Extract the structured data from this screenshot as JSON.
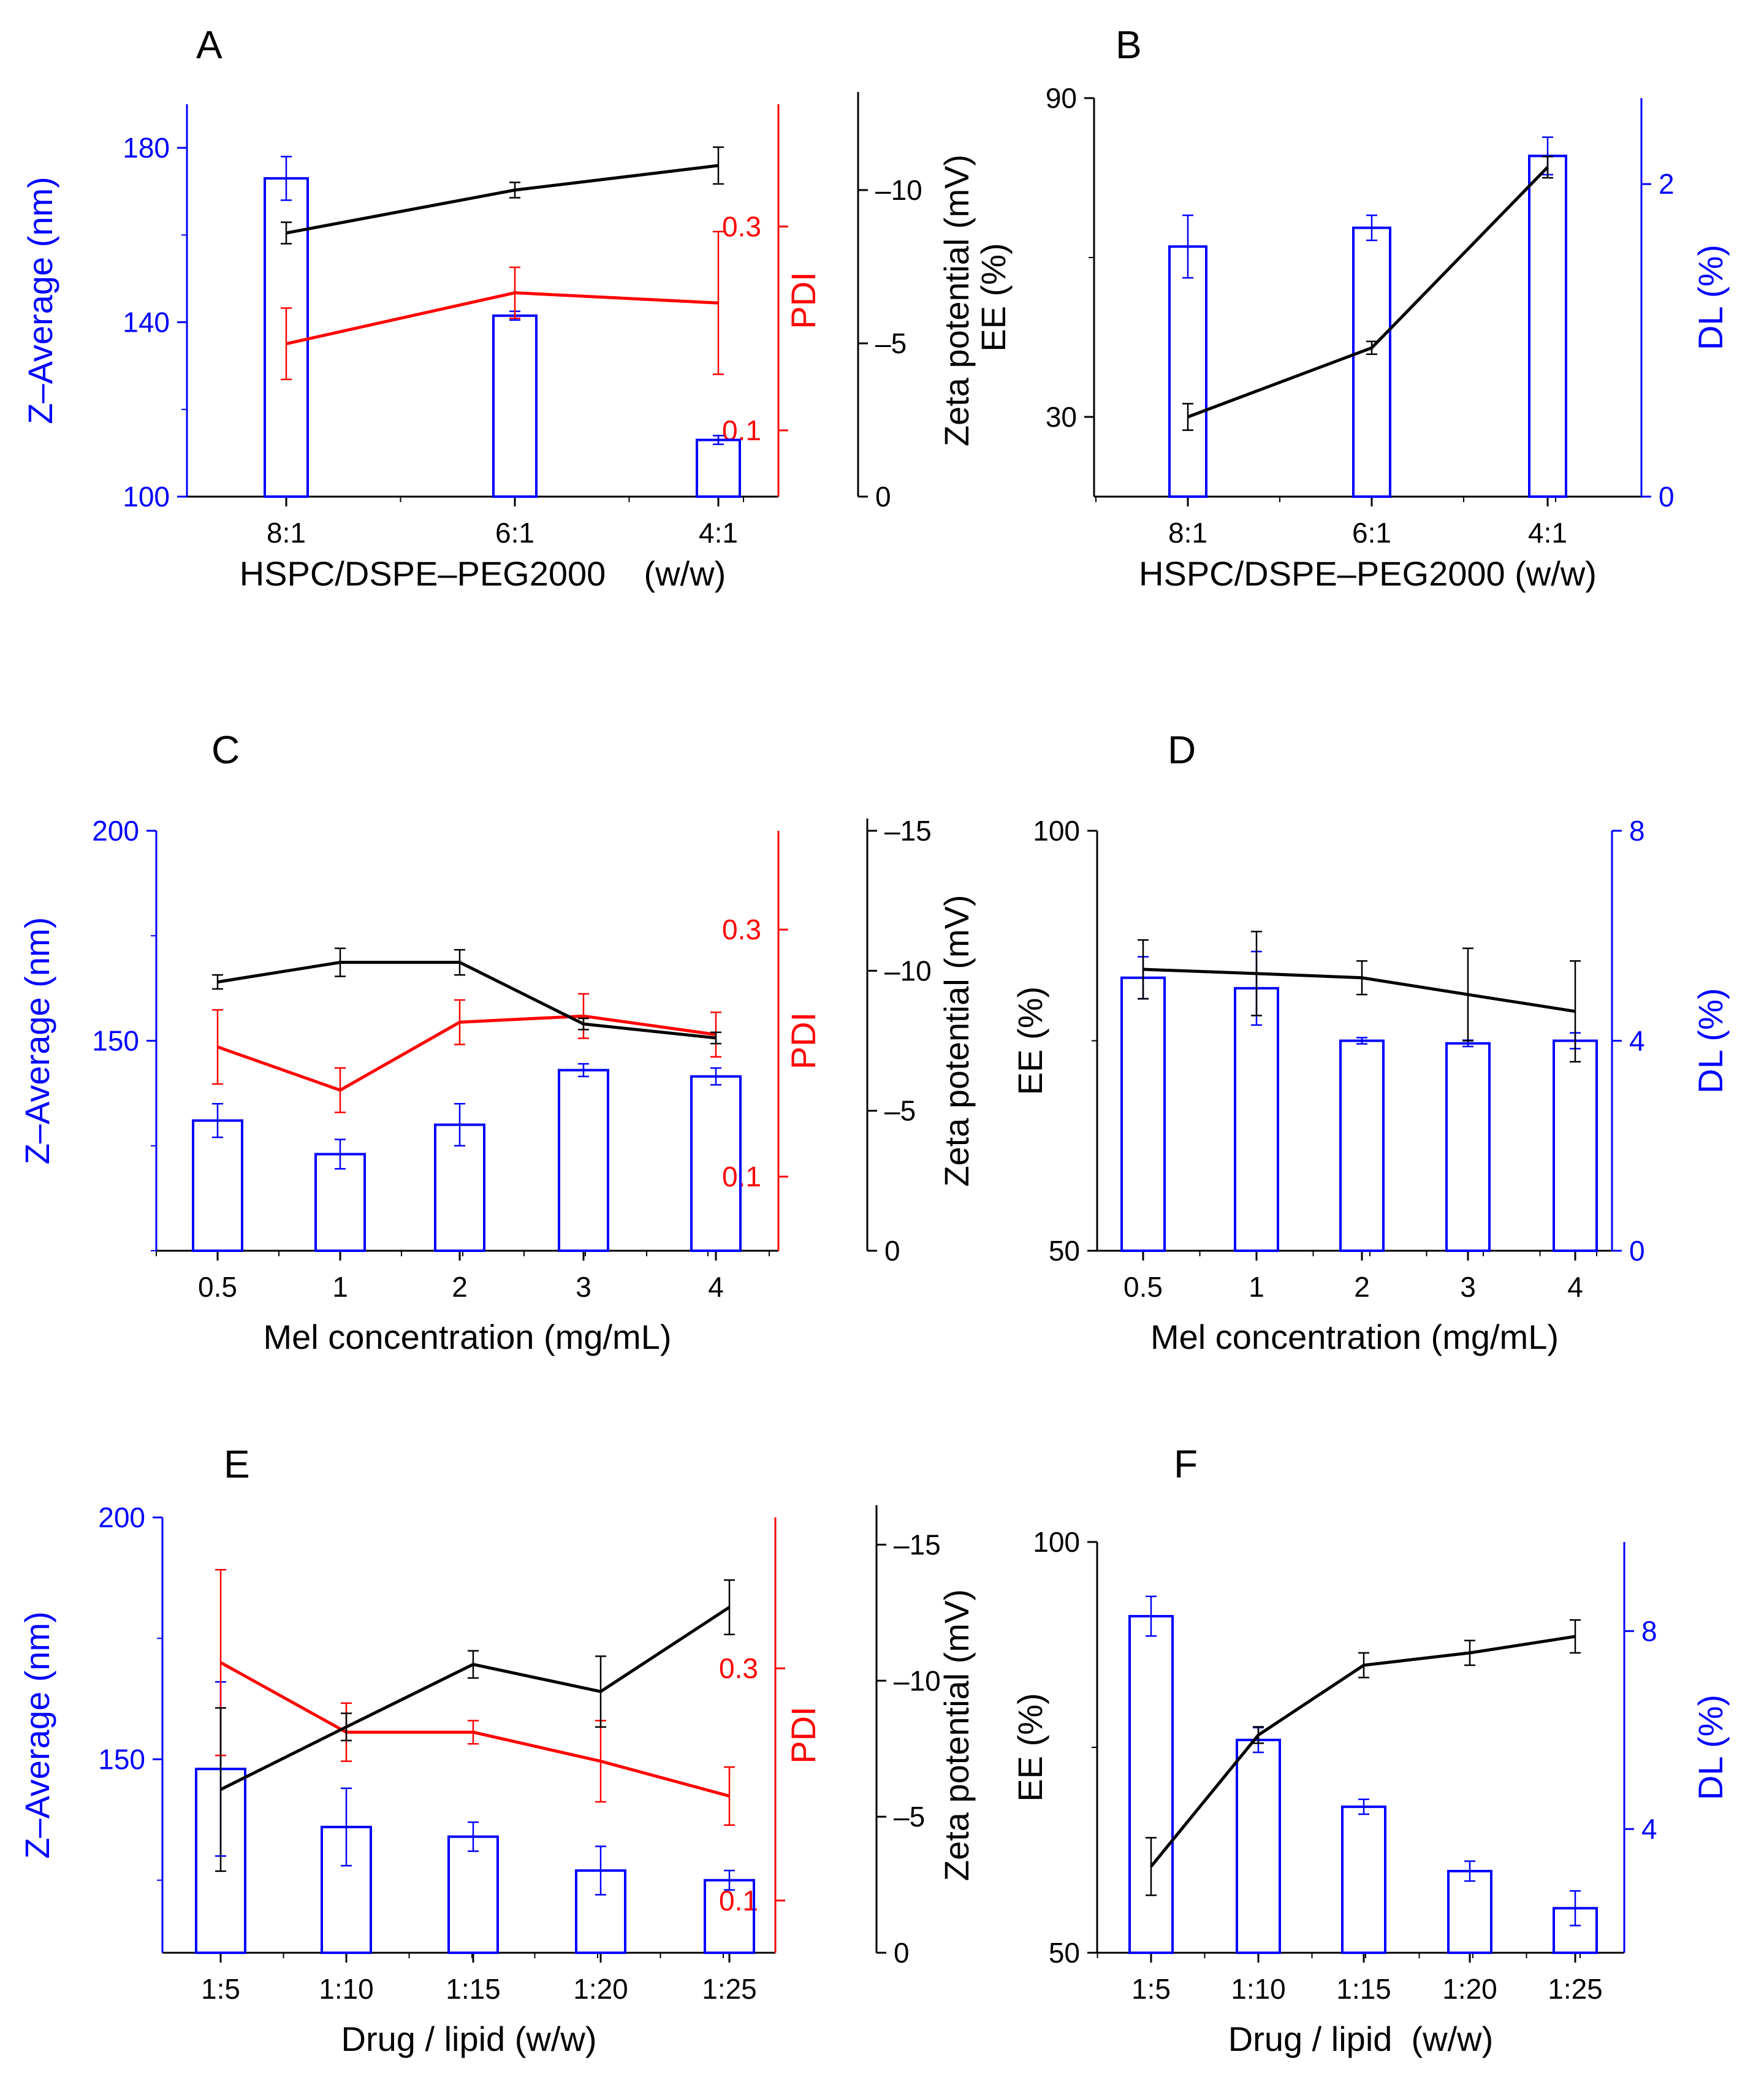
{
  "colors": {
    "bar": "#0000ff",
    "zeta": "#000000",
    "pdi": "#ff0000",
    "axis_black": "#000000"
  },
  "chart_data": [
    {
      "panel": "A",
      "type": "bar",
      "xlabel": "HSPC/DSPE–PEG2000    (w/w)",
      "categories": [
        "8:1",
        "6:1",
        "4:1"
      ],
      "left_axis": {
        "label": "Z–Average (nm)",
        "ticks": [
          "100",
          "140",
          "180"
        ],
        "range": [
          100,
          190
        ]
      },
      "right_axes": [
        {
          "label": "PDI",
          "ticks": [
            "0.1",
            "0.3"
          ],
          "range": [
            0.035,
            0.42
          ]
        },
        {
          "label": "Zeta potential (mV)",
          "ticks": [
            "0",
            "–5",
            "–10"
          ],
          "range": [
            0,
            -12.8
          ]
        }
      ],
      "series": [
        {
          "name": "Z–Average",
          "kind": "bar",
          "axis": 0,
          "values": [
            173,
            141.5,
            113
          ],
          "errors": [
            5,
            1,
            1
          ]
        },
        {
          "name": "PDI",
          "kind": "line",
          "axis": 1,
          "values": [
            0.185,
            0.235,
            0.225
          ],
          "errors": [
            0.035,
            0.025,
            0.07
          ]
        },
        {
          "name": "Zeta potential",
          "kind": "line",
          "axis": 2,
          "values": [
            -8.6,
            -10.0,
            -10.8
          ],
          "errors": [
            0.35,
            0.25,
            0.6
          ]
        }
      ]
    },
    {
      "panel": "B",
      "type": "bar",
      "xlabel": "HSPC/DSPE–PEG2000 (w/w)",
      "categories": [
        "8:1",
        "6:1",
        "4:1"
      ],
      "left_axis": {
        "label": "EE (%)",
        "ticks": [
          "30",
          "90"
        ],
        "range": [
          15,
          90
        ]
      },
      "right_axes": [
        {
          "label": "DL (%)",
          "ticks": [
            "0",
            "2"
          ],
          "range": [
            0,
            2.55
          ]
        }
      ],
      "series": [
        {
          "name": "DL",
          "kind": "bar",
          "axis": 1,
          "values": [
            1.6,
            1.72,
            2.18
          ],
          "errors": [
            0.2,
            0.08,
            0.12
          ]
        },
        {
          "name": "EE",
          "kind": "line",
          "axis": 0,
          "values": [
            30,
            43,
            77
          ],
          "errors": [
            2.5,
            1.2,
            2.0
          ]
        }
      ]
    },
    {
      "panel": "C",
      "type": "bar",
      "xlabel": "Mel concentration (mg/mL)",
      "categories": [
        "0.5",
        "1",
        "2",
        "3",
        "4"
      ],
      "left_axis": {
        "label": "Z–Average (nm)",
        "ticks": [
          "150",
          "200"
        ],
        "range": [
          100,
          200
        ]
      },
      "right_axes": [
        {
          "label": "PDI",
          "ticks": [
            "0.1",
            "0.3"
          ],
          "range": [
            0.04,
            0.38
          ]
        },
        {
          "label": "Zeta potential (mV)",
          "ticks": [
            "0",
            "–5",
            "–10",
            "–15"
          ],
          "range": [
            0,
            -15
          ]
        }
      ],
      "series": [
        {
          "name": "Z–Average",
          "kind": "bar",
          "axis": 0,
          "values": [
            131,
            123,
            130,
            143,
            141.5
          ],
          "errors": [
            4,
            3.5,
            5,
            1.5,
            2
          ]
        },
        {
          "name": "PDI",
          "kind": "line",
          "axis": 1,
          "values": [
            0.205,
            0.17,
            0.225,
            0.23,
            0.215
          ],
          "errors": [
            0.03,
            0.018,
            0.018,
            0.018,
            0.018
          ]
        },
        {
          "name": "Zeta potential",
          "kind": "line",
          "axis": 2,
          "values": [
            -9.6,
            -10.3,
            -10.3,
            -8.1,
            -7.6
          ],
          "errors": [
            0.25,
            0.5,
            0.45,
            0.2,
            0.2
          ]
        }
      ]
    },
    {
      "panel": "D",
      "type": "bar",
      "xlabel": "Mel concentration (mg/mL)",
      "categories": [
        "0.5",
        "1",
        "2",
        "3",
        "4"
      ],
      "left_axis": {
        "label": "EE (%)",
        "ticks": [
          "50",
          "100"
        ],
        "range": [
          50,
          100
        ]
      },
      "right_axes": [
        {
          "label": "DL (%)",
          "ticks": [
            "0",
            "4",
            "8"
          ],
          "range": [
            0,
            8
          ]
        }
      ],
      "series": [
        {
          "name": "DL",
          "kind": "bar",
          "axis": 1,
          "values": [
            5.2,
            5.0,
            4.0,
            3.95,
            4.0
          ],
          "errors": [
            0.4,
            0.7,
            0.06,
            0.06,
            0.15
          ]
        },
        {
          "name": "EE",
          "kind": "line",
          "axis": 0,
          "values": [
            83.5,
            83,
            82.5,
            80.5,
            78.5
          ],
          "errors": [
            3.5,
            5,
            2,
            5.5,
            6
          ]
        }
      ]
    },
    {
      "panel": "E",
      "type": "bar",
      "xlabel": "Drug / lipid (w/w)",
      "categories": [
        "1:5",
        "1:10",
        "1:15",
        "1:20",
        "1:25"
      ],
      "left_axis": {
        "label": "Z–Average (nm)",
        "ticks": [
          "150",
          "200"
        ],
        "range": [
          110,
          200
        ]
      },
      "right_axes": [
        {
          "label": "PDI",
          "ticks": [
            "0.1",
            "0.3"
          ],
          "range": [
            0.055,
            0.43
          ]
        },
        {
          "label": "Zeta potential (mV)",
          "ticks": [
            "0",
            "–5",
            "–10",
            "–15"
          ],
          "range": [
            0,
            -16
          ]
        }
      ],
      "series": [
        {
          "name": "Z–Average",
          "kind": "bar",
          "axis": 0,
          "values": [
            148,
            136,
            134,
            127,
            125
          ],
          "errors": [
            18,
            8,
            3,
            5,
            2
          ]
        },
        {
          "name": "PDI",
          "kind": "line",
          "axis": 1,
          "values": [
            0.305,
            0.245,
            0.245,
            0.22,
            0.19
          ],
          "errors": [
            0.08,
            0.025,
            0.01,
            0.035,
            0.025
          ]
        },
        {
          "name": "Zeta potential",
          "kind": "line",
          "axis": 2,
          "values": [
            -6.0,
            -8.3,
            -10.6,
            -9.6,
            -12.7
          ],
          "errors": [
            3.0,
            0.5,
            0.5,
            1.3,
            1.0
          ]
        }
      ]
    },
    {
      "panel": "F",
      "type": "bar",
      "xlabel": "Drug / lipid  (w/w)",
      "categories": [
        "1:5",
        "1:10",
        "1:15",
        "1:20",
        "1:25"
      ],
      "left_axis": {
        "label": "EE (%)",
        "ticks": [
          "50",
          "100"
        ],
        "range": [
          50,
          100
        ]
      },
      "right_axes": [
        {
          "label": "DL (%)",
          "ticks": [
            "4",
            "8"
          ],
          "range": [
            1.5,
            9.8
          ]
        }
      ],
      "series": [
        {
          "name": "DL",
          "kind": "bar",
          "axis": 1,
          "values": [
            8.3,
            5.8,
            4.45,
            3.15,
            2.4
          ],
          "errors": [
            0.4,
            0.25,
            0.15,
            0.2,
            0.35
          ]
        },
        {
          "name": "EE",
          "kind": "line",
          "axis": 0,
          "values": [
            60.5,
            76.5,
            85,
            86.5,
            88.5
          ],
          "errors": [
            3.5,
            1.0,
            1.5,
            1.5,
            2.0
          ]
        }
      ]
    }
  ]
}
